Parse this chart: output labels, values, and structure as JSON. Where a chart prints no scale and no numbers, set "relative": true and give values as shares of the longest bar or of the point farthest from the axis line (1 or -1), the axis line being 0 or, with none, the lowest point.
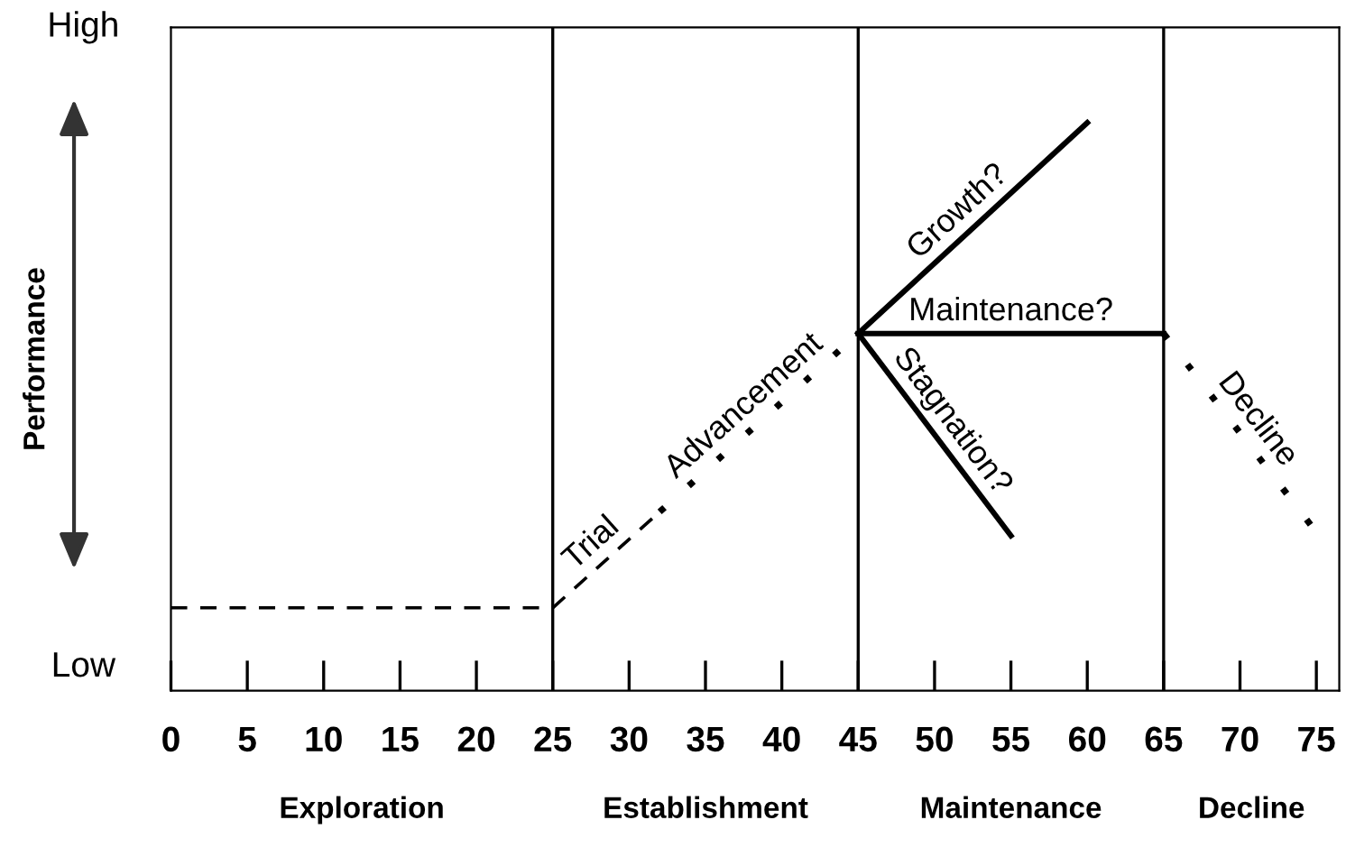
{
  "chart_data": {
    "type": "line",
    "relative": true,
    "ylabel": "Performance",
    "xlim": [
      0,
      76.5
    ],
    "xticks": [
      0,
      5,
      10,
      15,
      20,
      25,
      30,
      35,
      40,
      45,
      50,
      55,
      60,
      65,
      70,
      75
    ],
    "grid": false,
    "legend": false,
    "marker": "none",
    "series": [
      {
        "x": [
          0,
          25
        ],
        "values": [
          0.146,
          0.146
        ],
        "color": "#000000",
        "line_style": "dashed"
      },
      {
        "name": "Trial",
        "x": [
          25,
          32
        ],
        "values": [
          0.146,
          0.315
        ],
        "color": "#000000",
        "line_style": "dashed"
      },
      {
        "name": "Advancement",
        "x": [
          32,
          45
        ],
        "values": [
          0.315,
          0.629
        ],
        "color": "#000000",
        "line_style": "dotted"
      },
      {
        "name": "Growth?",
        "x": [
          45,
          60
        ],
        "values": [
          0.629,
          1.0
        ],
        "color": "#000000",
        "line_style": "solid"
      },
      {
        "name": "Maintenance?",
        "x": [
          45,
          65
        ],
        "values": [
          0.629,
          0.629
        ],
        "color": "#000000",
        "line_style": "solid"
      },
      {
        "name": "Stagnation?",
        "x": [
          45,
          55
        ],
        "values": [
          0.629,
          0.273
        ],
        "color": "#000000",
        "line_style": "solid"
      },
      {
        "name": "Decline",
        "x": [
          65,
          75
        ],
        "values": [
          0.629,
          0.279
        ],
        "color": "#000000",
        "line_style": "dotted"
      }
    ],
    "ref_lines": [
      {
        "axis": "x",
        "value": 25,
        "color": "#000000"
      },
      {
        "axis": "x",
        "value": 45,
        "color": "#000000"
      },
      {
        "axis": "x",
        "value": 65,
        "color": "#000000"
      }
    ],
    "annotations": [
      "High",
      "Low",
      "Exploration",
      "Establishment",
      "Maintenance",
      "Decline"
    ]
  }
}
